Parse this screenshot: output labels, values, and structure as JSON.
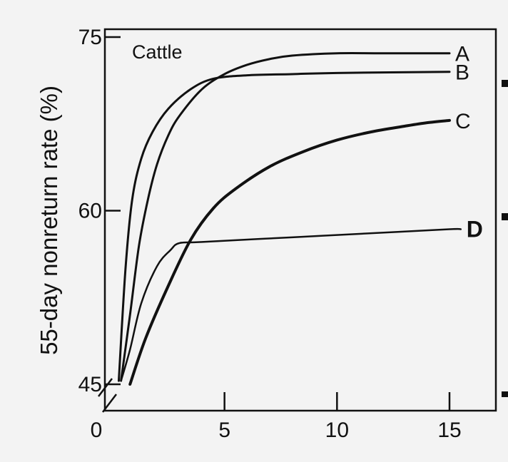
{
  "chart_data": {
    "type": "line",
    "panel_label": "Cattle",
    "ylabel": "55-day nonreturn rate (%)",
    "xlabel": "",
    "xlim": [
      0,
      16.5
    ],
    "ylim": [
      45,
      75
    ],
    "x_ticks": [
      0,
      5,
      10,
      15
    ],
    "y_ticks": [
      45,
      60,
      75
    ],
    "y_axis_break": true,
    "grid": false,
    "legend": "direct labels at right end of each curve",
    "series": [
      {
        "name": "A",
        "label_bold": false,
        "stroke_width": 3,
        "points": [
          [
            0.4,
            45.3
          ],
          [
            0.8,
            51
          ],
          [
            1.2,
            57
          ],
          [
            1.6,
            61
          ],
          [
            2,
            64
          ],
          [
            2.5,
            66.5
          ],
          [
            3,
            68.2
          ],
          [
            4,
            70.5
          ],
          [
            5,
            71.8
          ],
          [
            6,
            72.6
          ],
          [
            7,
            73.1
          ],
          [
            8,
            73.4
          ],
          [
            10,
            73.6
          ],
          [
            12,
            73.6
          ],
          [
            15,
            73.6
          ]
        ]
      },
      {
        "name": "B",
        "label_bold": false,
        "stroke_width": 3,
        "points": [
          [
            0.3,
            45.3
          ],
          [
            0.6,
            55
          ],
          [
            0.9,
            61
          ],
          [
            1.3,
            64.5
          ],
          [
            1.8,
            66.8
          ],
          [
            2.5,
            68.8
          ],
          [
            3.5,
            70.5
          ],
          [
            4.5,
            71.4
          ],
          [
            6,
            71.7
          ],
          [
            8,
            71.8
          ],
          [
            10,
            71.9
          ],
          [
            15,
            72
          ]
        ]
      },
      {
        "name": "C",
        "label_bold": false,
        "stroke_width": 4,
        "points": [
          [
            0.8,
            45
          ],
          [
            1.5,
            49
          ],
          [
            2.5,
            53.5
          ],
          [
            3.5,
            57.5
          ],
          [
            4.5,
            60.2
          ],
          [
            5.5,
            61.9
          ],
          [
            7,
            63.8
          ],
          [
            8.5,
            65.1
          ],
          [
            10,
            66.1
          ],
          [
            11.5,
            66.8
          ],
          [
            13,
            67.3
          ],
          [
            14,
            67.6
          ],
          [
            15,
            67.8
          ]
        ]
      },
      {
        "name": "D",
        "label_bold": true,
        "stroke_width": 2.5,
        "points": [
          [
            0.4,
            45.3
          ],
          [
            0.8,
            48
          ],
          [
            1.3,
            52
          ],
          [
            2,
            55.2
          ],
          [
            2.6,
            56.6
          ],
          [
            3,
            57.2
          ],
          [
            4,
            57.3
          ],
          [
            8,
            57.7
          ],
          [
            12,
            58.1
          ],
          [
            15,
            58.4
          ],
          [
            15.5,
            58.4
          ]
        ]
      }
    ]
  }
}
